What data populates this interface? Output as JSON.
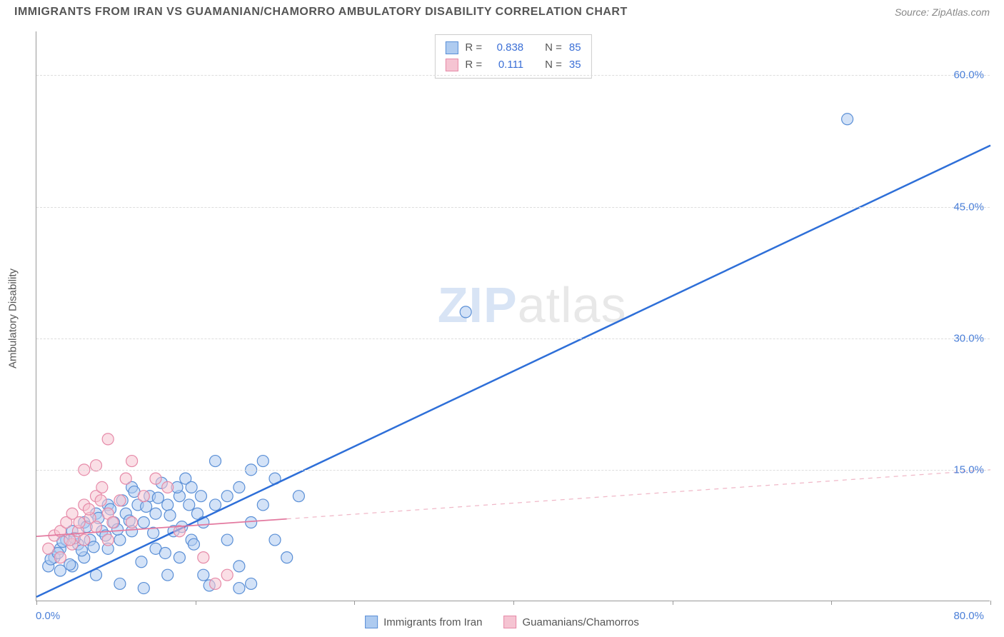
{
  "title": "IMMIGRANTS FROM IRAN VS GUAMANIAN/CHAMORRO AMBULATORY DISABILITY CORRELATION CHART",
  "source": "Source: ZipAtlas.com",
  "y_axis_label": "Ambulatory Disability",
  "watermark_bold": "ZIP",
  "watermark_light": "atlas",
  "chart": {
    "type": "scatter",
    "xlim": [
      0,
      80
    ],
    "ylim": [
      0,
      65
    ],
    "x_origin_label": "0.0%",
    "x_max_label": "80.0%",
    "y_ticks": [
      {
        "value": 15,
        "label": "15.0%"
      },
      {
        "value": 30,
        "label": "30.0%"
      },
      {
        "value": 45,
        "label": "45.0%"
      },
      {
        "value": 60,
        "label": "60.0%"
      }
    ],
    "x_tick_positions": [
      0,
      13.33,
      26.67,
      40,
      53.33,
      66.67,
      80
    ],
    "grid_color": "#dddddd",
    "background_color": "#ffffff",
    "marker_radius": 8,
    "marker_stroke_width": 1.2,
    "series": [
      {
        "name": "Immigrants from Iran",
        "fill": "#aecbf0",
        "stroke": "#5a8fd6",
        "fill_opacity": 0.55,
        "r_value": "0.838",
        "n_value": "85",
        "trend": {
          "x1": 0,
          "y1": 0.5,
          "x2": 80,
          "y2": 52,
          "solid_until_x": 80,
          "color": "#2e6fd8",
          "width": 2.5
        },
        "points": [
          [
            1,
            4
          ],
          [
            1.5,
            5
          ],
          [
            2,
            3.5
          ],
          [
            2,
            6
          ],
          [
            2.5,
            7
          ],
          [
            3,
            4
          ],
          [
            3,
            8
          ],
          [
            3.5,
            6.5
          ],
          [
            4,
            5
          ],
          [
            4,
            9
          ],
          [
            4.5,
            7
          ],
          [
            5,
            3
          ],
          [
            5,
            10
          ],
          [
            5.5,
            8
          ],
          [
            6,
            6
          ],
          [
            6,
            11
          ],
          [
            6.5,
            9
          ],
          [
            7,
            7
          ],
          [
            7,
            2
          ],
          [
            7.5,
            10
          ],
          [
            8,
            8
          ],
          [
            8,
            13
          ],
          [
            8.5,
            11
          ],
          [
            9,
            9
          ],
          [
            9,
            1.5
          ],
          [
            9.5,
            12
          ],
          [
            10,
            10
          ],
          [
            10,
            6
          ],
          [
            10.5,
            13.5
          ],
          [
            11,
            11
          ],
          [
            11,
            3
          ],
          [
            11.5,
            8
          ],
          [
            12,
            12
          ],
          [
            12,
            5
          ],
          [
            12.5,
            14
          ],
          [
            13,
            13
          ],
          [
            13,
            7
          ],
          [
            13.5,
            10
          ],
          [
            14,
            9
          ],
          [
            14,
            3
          ],
          [
            15,
            11
          ],
          [
            15,
            16
          ],
          [
            16,
            12
          ],
          [
            16,
            7
          ],
          [
            17,
            13
          ],
          [
            17,
            4
          ],
          [
            18,
            15
          ],
          [
            18,
            9
          ],
          [
            19,
            16
          ],
          [
            19,
            11
          ],
          [
            20,
            14
          ],
          [
            20,
            7
          ],
          [
            21,
            5
          ],
          [
            22,
            12
          ],
          [
            17,
            1.5
          ],
          [
            18,
            2
          ],
          [
            14.5,
            1.8
          ],
          [
            36,
            33
          ],
          [
            68,
            55
          ],
          [
            1.2,
            4.8
          ],
          [
            1.8,
            5.5
          ],
          [
            2.2,
            6.8
          ],
          [
            2.8,
            4.2
          ],
          [
            3.2,
            7.2
          ],
          [
            3.8,
            5.8
          ],
          [
            4.2,
            8.5
          ],
          [
            4.8,
            6.2
          ],
          [
            5.2,
            9.5
          ],
          [
            5.8,
            7.5
          ],
          [
            6.2,
            10.5
          ],
          [
            6.8,
            8.2
          ],
          [
            7.2,
            11.5
          ],
          [
            7.8,
            9.2
          ],
          [
            8.2,
            12.5
          ],
          [
            8.8,
            4.5
          ],
          [
            9.2,
            10.8
          ],
          [
            9.8,
            7.8
          ],
          [
            10.2,
            11.8
          ],
          [
            10.8,
            5.5
          ],
          [
            11.2,
            9.8
          ],
          [
            11.8,
            13
          ],
          [
            12.2,
            8.5
          ],
          [
            12.8,
            11
          ],
          [
            13.2,
            6.5
          ],
          [
            13.8,
            12
          ]
        ]
      },
      {
        "name": "Guamanians/Chamorros",
        "fill": "#f5c4d2",
        "stroke": "#e68aa8",
        "fill_opacity": 0.55,
        "r_value": "0.111",
        "n_value": "35",
        "trend": {
          "x1": 0,
          "y1": 7.4,
          "x2": 80,
          "y2": 15,
          "solid_until_x": 21,
          "color": "#e37aa0",
          "width": 1.8,
          "dash_color": "#f0b8c8"
        },
        "points": [
          [
            1,
            6
          ],
          [
            1.5,
            7.5
          ],
          [
            2,
            5
          ],
          [
            2,
            8
          ],
          [
            2.5,
            9
          ],
          [
            3,
            6.5
          ],
          [
            3,
            10
          ],
          [
            3.5,
            8
          ],
          [
            4,
            7
          ],
          [
            4,
            11
          ],
          [
            4.5,
            9.5
          ],
          [
            5,
            8.5
          ],
          [
            5,
            12
          ],
          [
            5.5,
            13
          ],
          [
            6,
            10
          ],
          [
            6,
            7
          ],
          [
            7,
            11.5
          ],
          [
            7.5,
            14
          ],
          [
            8,
            9
          ],
          [
            8,
            16
          ],
          [
            9,
            12
          ],
          [
            10,
            14
          ],
          [
            11,
            13
          ],
          [
            12,
            8
          ],
          [
            6,
            18.5
          ],
          [
            5,
            15.5
          ],
          [
            4,
            15
          ],
          [
            14,
            5
          ],
          [
            15,
            2
          ],
          [
            16,
            3
          ],
          [
            2.8,
            7
          ],
          [
            3.6,
            9
          ],
          [
            4.4,
            10.5
          ],
          [
            5.4,
            11.5
          ],
          [
            6.4,
            9
          ]
        ]
      }
    ]
  },
  "legend_top": {
    "r_label": "R =",
    "n_label": "N ="
  },
  "bottom_legend": [
    {
      "label": "Immigrants from Iran",
      "fill": "#aecbf0",
      "stroke": "#5a8fd6"
    },
    {
      "label": "Guamanians/Chamorros",
      "fill": "#f5c4d2",
      "stroke": "#e68aa8"
    }
  ]
}
